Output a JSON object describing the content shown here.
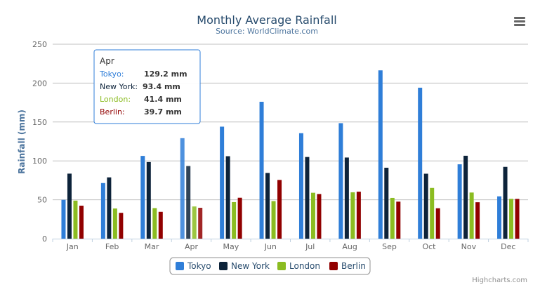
{
  "chart_data": {
    "type": "bar",
    "title": "Monthly Average Rainfall",
    "subtitle": "Source: WorldClimate.com",
    "xlabel": "",
    "ylabel": "Rainfall (mm)",
    "ylim": [
      0,
      250
    ],
    "yticks": [
      0,
      50,
      100,
      150,
      200,
      250
    ],
    "grid": true,
    "legend_position": "bottom",
    "categories": [
      "Jan",
      "Feb",
      "Mar",
      "Apr",
      "May",
      "Jun",
      "Jul",
      "Aug",
      "Sep",
      "Oct",
      "Nov",
      "Dec"
    ],
    "series": [
      {
        "name": "Tokyo",
        "color": "#2f7ed8",
        "values": [
          49.9,
          71.5,
          106.4,
          129.2,
          144.0,
          176.0,
          135.6,
          148.5,
          216.4,
          194.1,
          95.6,
          54.4
        ]
      },
      {
        "name": "New York",
        "color": "#0d233a",
        "values": [
          83.6,
          78.8,
          98.5,
          93.4,
          106.0,
          84.5,
          105.0,
          104.3,
          91.2,
          83.5,
          106.6,
          92.3
        ]
      },
      {
        "name": "London",
        "color": "#8bbc21",
        "values": [
          48.9,
          38.8,
          39.3,
          41.4,
          47.0,
          48.3,
          59.0,
          59.6,
          52.4,
          65.2,
          59.3,
          51.2
        ]
      },
      {
        "name": "Berlin",
        "color": "#910000",
        "values": [
          42.4,
          33.2,
          34.5,
          39.7,
          52.6,
          75.5,
          57.4,
          60.4,
          47.6,
          39.1,
          46.8,
          51.1
        ]
      }
    ],
    "hovered_category": "Apr",
    "tooltip": {
      "header": "Apr",
      "rows": [
        {
          "label": "Tokyo:",
          "value": "129.2 mm",
          "color": "#2f7ed8"
        },
        {
          "label": "New York:",
          "value": "93.4 mm",
          "color": "#0d233a"
        },
        {
          "label": "London:",
          "value": "41.4 mm",
          "color": "#8bbc21"
        },
        {
          "label": "Berlin:",
          "value": "39.7 mm",
          "color": "#910000"
        }
      ]
    }
  },
  "menu_icon": "hamburger-menu-icon",
  "credits": "Highcharts.com"
}
